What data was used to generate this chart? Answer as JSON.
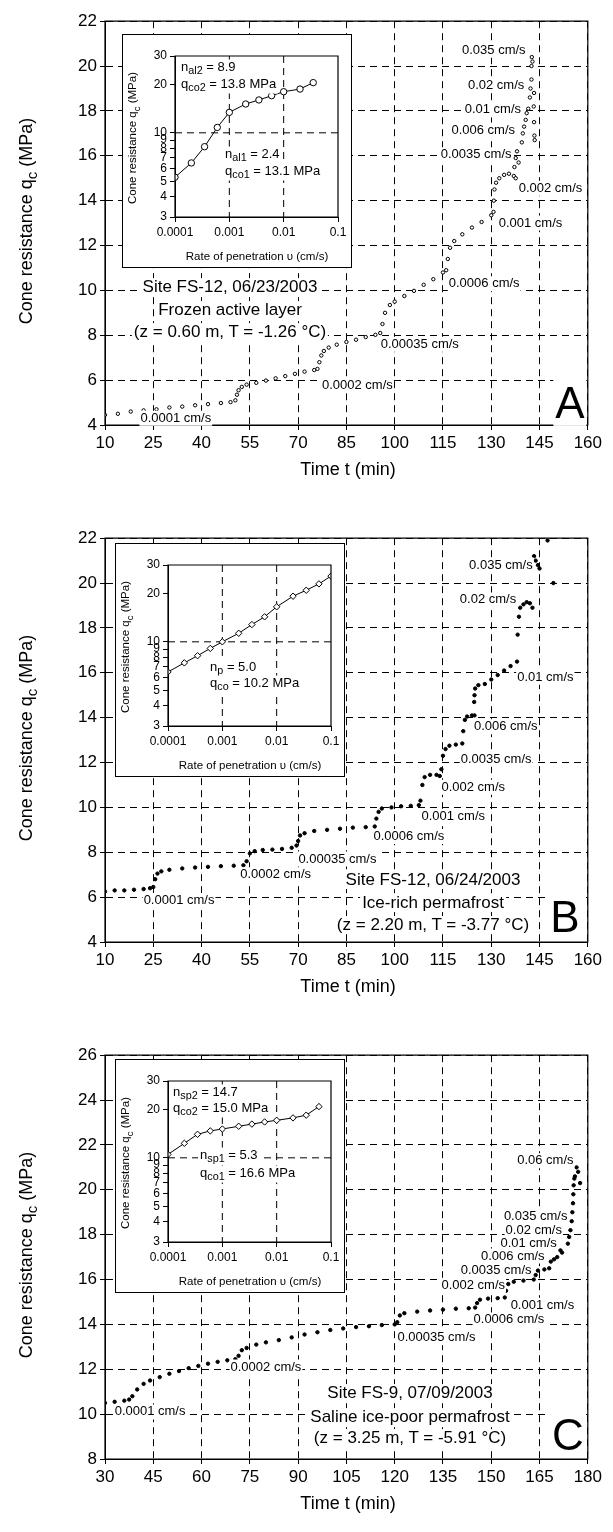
{
  "chart_data": [
    {
      "type": "scatter",
      "xlabel": "Time t (min)",
      "ylabel": "Cone resistance q$_{c}$ (MPa)",
      "color": "#000000",
      "marker": "circle",
      "grid": true,
      "xlim": [
        10,
        160
      ],
      "xticks": [
        10,
        25,
        40,
        55,
        70,
        85,
        100,
        115,
        130,
        145,
        160
      ],
      "ylim": [
        4,
        22
      ],
      "yticks": [
        4,
        6,
        8,
        10,
        12,
        14,
        16,
        18,
        20,
        22
      ],
      "x": [
        10,
        14,
        18,
        22,
        26,
        30,
        34,
        38,
        42,
        46,
        49,
        50.5,
        51,
        51.5,
        52.5,
        54,
        57,
        60,
        63,
        66,
        69,
        72,
        75,
        76,
        76.6,
        77.2,
        78,
        79.5,
        82,
        85,
        88,
        91,
        94,
        95.5,
        96.2,
        97,
        98.5,
        100,
        103,
        106,
        109,
        112,
        115,
        116,
        116.5,
        117.2,
        118.5,
        121,
        124,
        127,
        130,
        130.7,
        130.8,
        131,
        131.5,
        132.5,
        134,
        135.5,
        137,
        137.6,
        137.2,
        137.6,
        138,
        138.5,
        139.5,
        139.8,
        140.2,
        140.7,
        141,
        141.5,
        142,
        142.2,
        142.5,
        142.5,
        142.6,
        142.8,
        143.2,
        143.3,
        143.4,
        143.5,
        143.3
      ],
      "values": [
        4.45,
        4.5,
        4.6,
        4.65,
        4.7,
        4.78,
        4.82,
        4.88,
        4.93,
        4.98,
        5.02,
        5.1,
        5.35,
        5.55,
        5.7,
        5.8,
        5.88,
        5.98,
        6.08,
        6.18,
        6.28,
        6.38,
        6.45,
        6.5,
        6.8,
        7.1,
        7.3,
        7.45,
        7.58,
        7.7,
        7.8,
        7.92,
        8.02,
        8.1,
        8.5,
        9.0,
        9.35,
        9.5,
        9.75,
        9.98,
        10.25,
        10.5,
        10.8,
        10.9,
        11.4,
        11.9,
        12.2,
        12.5,
        12.8,
        13.05,
        13.35,
        13.5,
        14.0,
        14.5,
        14.8,
        15.0,
        15.15,
        15.2,
        15.1,
        15.0,
        15.5,
        15.9,
        16.2,
        15.7,
        16.6,
        17.0,
        17.3,
        17.6,
        17.9,
        18.1,
        18.6,
        19.0,
        19.4,
        20.0,
        20.4,
        20.2,
        18.2,
        17.5,
        16.9,
        16.7,
        18.8
      ],
      "annotations": [
        "0.0001 cm/s",
        "0.0002 cm/s",
        "0.00035 cm/s",
        "0.0006 cm/s",
        "0.001 cm/s",
        "0.002 cm/s",
        "0.0035 cm/s",
        "0.006 cm/s",
        "0.01 cm/s",
        "0.02 cm/s",
        "0.035 cm/s",
        "Site FS-12, 06/23/2003",
        "Frozen active layer",
        "(z = 0.60 m, T = -1.26 °C)",
        "A"
      ]
    },
    {
      "type": "line",
      "xlabel": "Rate of penetration υ (cm/s)",
      "ylabel": "Cone resistance q$_{c}$ (MPa)",
      "color": "#000000",
      "marker": "circle",
      "log": "xy",
      "xlim": [
        0.0001,
        0.1
      ],
      "xticks": [
        0.0001,
        0.001,
        0.01,
        0.1
      ],
      "ylim": [
        3,
        30
      ],
      "yticks": [
        3,
        4,
        5,
        6,
        7,
        8,
        9,
        10,
        20,
        30
      ],
      "x": [
        0.0001,
        0.0002,
        0.00035,
        0.0006,
        0.001,
        0.002,
        0.0035,
        0.006,
        0.01,
        0.02,
        0.035
      ],
      "values": [
        5.3,
        6.5,
        8.2,
        10.8,
        13.4,
        15.1,
        16.0,
        17.0,
        18.0,
        18.7,
        20.5
      ],
      "ref_lines": [
        {
          "axis": "x",
          "value": 0.001,
          "line_style": "dashed"
        },
        {
          "axis": "x",
          "value": 0.01,
          "line_style": "dashed"
        },
        {
          "axis": "y",
          "value": 10,
          "line_style": "dashed"
        }
      ],
      "annotations": [
        "n$_{al2}$ = 8.9",
        "q$_{co2}$ = 13.8 MPa",
        "n$_{al1}$ = 2.4",
        "q$_{co1}$ = 13.1 MPa"
      ]
    },
    {
      "type": "scatter",
      "xlabel": "Time t (min)",
      "ylabel": "Cone resistance q$_{c}$ (MPa)",
      "color": "#000000",
      "marker": "circle",
      "grid": true,
      "xlim": [
        10,
        160
      ],
      "xticks": [
        10,
        25,
        40,
        55,
        70,
        85,
        100,
        115,
        130,
        145,
        160
      ],
      "ylim": [
        4,
        22
      ],
      "yticks": [
        4,
        6,
        8,
        10,
        12,
        14,
        16,
        18,
        20,
        22
      ],
      "x": [
        10,
        13,
        16,
        19,
        22,
        24,
        25,
        25.6,
        26.3,
        27.5,
        30,
        34,
        38,
        42,
        46,
        50,
        53,
        54,
        55,
        56.5,
        59,
        62,
        65,
        68,
        69.5,
        70,
        70.6,
        72,
        75,
        79,
        83,
        87,
        91,
        93.8,
        94.3,
        95,
        96,
        99,
        102,
        105,
        107.5,
        108,
        108.6,
        109.3,
        111,
        113,
        114,
        114.5,
        115,
        115.8,
        117,
        119,
        121,
        121.3,
        121.8,
        122.5,
        124,
        124.8,
        124.7,
        124.8,
        125,
        126,
        128,
        130,
        132,
        134,
        136,
        138,
        138.2,
        138.6,
        139,
        140,
        141,
        142,
        142.8,
        143.3,
        143.8,
        144.5,
        145,
        147.5,
        149.3
      ],
      "values": [
        6.25,
        6.3,
        6.3,
        6.33,
        6.36,
        6.4,
        6.45,
        6.8,
        7.05,
        7.15,
        7.22,
        7.28,
        7.32,
        7.35,
        7.38,
        7.4,
        7.42,
        7.6,
        7.95,
        8.05,
        8.1,
        8.12,
        8.15,
        8.2,
        8.3,
        8.5,
        8.75,
        8.85,
        8.95,
        9.0,
        9.05,
        9.1,
        9.12,
        9.15,
        9.5,
        9.8,
        9.95,
        10.0,
        10.05,
        10.07,
        10.1,
        10.3,
        11.0,
        11.35,
        11.45,
        11.45,
        11.4,
        11.7,
        12.3,
        12.6,
        12.75,
        12.8,
        12.85,
        13.4,
        13.9,
        14.05,
        14.1,
        14.1,
        14.7,
        15.0,
        15.3,
        15.45,
        15.5,
        15.7,
        15.9,
        16.1,
        16.3,
        16.5,
        17.7,
        18.5,
        18.9,
        19.05,
        19.15,
        19.1,
        18.9,
        21.2,
        21.0,
        20.8,
        20.65,
        21.9,
        20.0
      ],
      "annotations": [
        "0.0001 cm/s",
        "0.0002 cm/s",
        "0.00035 cm/s",
        "0.0006 cm/s",
        "0.001 cm/s",
        "0.002 cm/s",
        "0.0035 cm/s",
        "0.006 cm/s",
        "0.01 cm/s",
        "0.02 cm/s",
        "0.035 cm/s",
        "Site FS-12, 06/24/2003",
        "Ice-rich permafrost",
        "(z = 2.20 m, T = -3.77 °C)",
        "B"
      ]
    },
    {
      "type": "line",
      "xlabel": "Rate of penetration υ (cm/s)",
      "ylabel": "Cone resistance q$_{c}$ (MPa)",
      "color": "#000000",
      "marker": "diamond",
      "log": "xy",
      "xlim": [
        0.0001,
        0.1
      ],
      "xticks": [
        0.0001,
        0.001,
        0.01,
        0.1
      ],
      "ylim": [
        3,
        30
      ],
      "yticks": [
        3,
        4,
        5,
        6,
        7,
        8,
        9,
        10,
        20,
        30
      ],
      "x": [
        0.0001,
        0.0002,
        0.00035,
        0.0006,
        0.001,
        0.002,
        0.0035,
        0.006,
        0.01,
        0.02,
        0.035,
        0.06,
        0.1
      ],
      "values": [
        6.5,
        7.4,
        8.2,
        9.1,
        10.0,
        11.3,
        12.8,
        14.3,
        16.5,
        19.2,
        20.9,
        22.9,
        25.6
      ],
      "ref_lines": [
        {
          "axis": "x",
          "value": 0.001,
          "line_style": "dashed"
        },
        {
          "axis": "x",
          "value": 0.01,
          "line_style": "dashed"
        },
        {
          "axis": "y",
          "value": 10,
          "line_style": "dashed"
        }
      ],
      "annotations": [
        "n$_{p}$ = 5.0",
        "q$_{co}$ = 10.2 MPa"
      ]
    },
    {
      "type": "scatter",
      "xlabel": "Time t (min)",
      "ylabel": "Cone resistance q$_{c}$ (MPa)",
      "color": "#000000",
      "marker": "circle",
      "grid": true,
      "xlim": [
        30,
        180
      ],
      "xticks": [
        30,
        45,
        60,
        75,
        90,
        105,
        120,
        135,
        150,
        165,
        180
      ],
      "ylim": [
        8,
        26
      ],
      "yticks": [
        8,
        10,
        12,
        14,
        16,
        18,
        20,
        22,
        24,
        26
      ],
      "x": [
        30,
        33,
        36,
        37.5,
        38.5,
        40,
        42,
        44,
        47,
        50,
        53,
        56,
        59,
        62,
        65,
        68,
        70.5,
        71.5,
        72.5,
        74,
        77,
        80,
        84,
        88,
        92,
        96,
        100,
        104,
        108,
        112,
        116,
        120,
        120.8,
        121.6,
        123,
        127,
        131,
        135,
        139,
        143,
        145,
        145.6,
        146.5,
        149,
        152,
        154.2,
        154.6,
        155.3,
        157,
        160,
        163.2,
        163.8,
        164.5,
        166.5,
        168,
        168.5,
        169.5,
        170.5,
        171.5,
        172,
        173.8,
        174.2,
        174.6,
        175,
        175.2,
        175.4,
        175.5,
        175.6,
        176,
        176.5,
        177,
        177.6,
        175.8
      ],
      "values": [
        10.5,
        10.55,
        10.6,
        10.65,
        10.8,
        11.1,
        11.35,
        11.5,
        11.65,
        11.8,
        11.92,
        12.05,
        12.15,
        12.25,
        12.33,
        12.4,
        12.45,
        12.6,
        12.85,
        12.95,
        13.1,
        13.2,
        13.3,
        13.42,
        13.55,
        13.65,
        13.75,
        13.82,
        13.88,
        13.92,
        13.97,
        14.0,
        14.1,
        14.4,
        14.5,
        14.57,
        14.62,
        14.66,
        14.7,
        14.72,
        14.75,
        14.95,
        15.1,
        15.15,
        15.17,
        15.2,
        15.5,
        15.8,
        15.9,
        15.95,
        16.0,
        16.2,
        16.4,
        16.45,
        16.5,
        16.8,
        16.9,
        17.0,
        17.3,
        17.2,
        17.6,
        17.9,
        18.2,
        18.6,
        19.0,
        19.4,
        19.8,
        20.2,
        20.6,
        21.0,
        20.8,
        20.3,
        20.5
      ],
      "annotations": [
        "0.0001 cm/s",
        "0.0002 cm/s",
        "0.00035 cm/s",
        "0.0006 cm/s",
        "0.001 cm/s",
        "0.002 cm/s",
        "0.0035 cm/s",
        "0.006 cm/s",
        "0.01 cm/s",
        "0.02 cm/s",
        "0.035 cm/s",
        "0.06 cm/s",
        "Site FS-9, 07/09/2003",
        "Saline ice-poor permafrost",
        "(z = 3.25 m, T = -5.91 °C)",
        "C"
      ]
    },
    {
      "type": "line",
      "xlabel": "Rate of penetration υ (cm/s)",
      "ylabel": "Cone resistance q$_{c}$ (MPa)",
      "color": "#000000",
      "marker": "diamond",
      "log": "xy",
      "xlim": [
        0.0001,
        0.1
      ],
      "xticks": [
        0.0001,
        0.001,
        0.01,
        0.1
      ],
      "ylim": [
        3,
        30
      ],
      "yticks": [
        3,
        4,
        5,
        6,
        7,
        8,
        9,
        10,
        20,
        30
      ],
      "x": [
        0.0001,
        0.0002,
        0.00035,
        0.0006,
        0.001,
        0.002,
        0.0035,
        0.006,
        0.01,
        0.02,
        0.035,
        0.06
      ],
      "values": [
        10.5,
        12.3,
        14.0,
        14.7,
        15.1,
        15.7,
        16.2,
        16.7,
        17.1,
        17.7,
        18.4,
        20.8
      ],
      "ref_lines": [
        {
          "axis": "x",
          "value": 0.001,
          "line_style": "dashed"
        },
        {
          "axis": "x",
          "value": 0.01,
          "line_style": "dashed"
        },
        {
          "axis": "y",
          "value": 10,
          "line_style": "dashed"
        }
      ],
      "annotations": [
        "n$_{sp2}$ = 14.7",
        "q$_{co2}$ = 15.0 MPa",
        "n$_{sp1}$ = 5.3",
        "q$_{co1}$ = 16.6 MPa"
      ]
    }
  ]
}
